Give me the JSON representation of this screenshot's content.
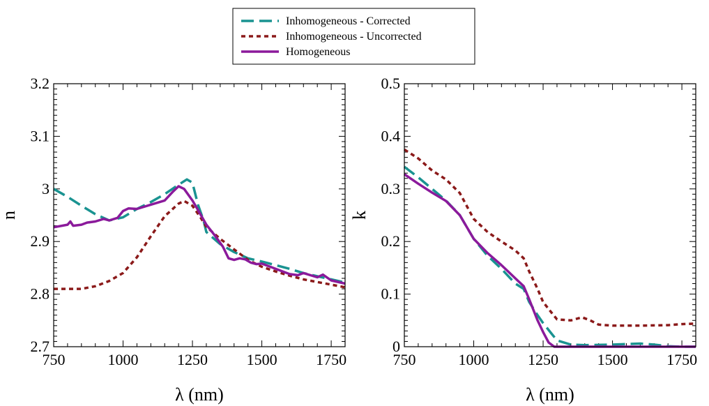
{
  "chart_data": [
    {
      "type": "line",
      "title": "",
      "xlabel": "λ (nm)",
      "ylabel": "n",
      "xlim": [
        750,
        1800
      ],
      "ylim": [
        2.7,
        3.2
      ],
      "xticks": [
        750,
        1000,
        1250,
        1500,
        1750
      ],
      "xtick_labels": [
        "750",
        "1000",
        "1250",
        "1500",
        "1750"
      ],
      "yticks": [
        2.7,
        2.8,
        2.9,
        3.0,
        3.1,
        3.2
      ],
      "ytick_labels": [
        "2.7",
        "2.8",
        "2.9",
        "3",
        "3.1",
        "3.2"
      ],
      "grid": false,
      "series": [
        {
          "name": "Inhomogeneous - Corrected",
          "color": "#1a9391",
          "dash": "dashed",
          "points": [
            [
              750,
              3.0
            ],
            [
              800,
              2.985
            ],
            [
              850,
              2.968
            ],
            [
              900,
              2.952
            ],
            [
              950,
              2.94
            ],
            [
              1000,
              2.946
            ],
            [
              1050,
              2.962
            ],
            [
              1100,
              2.975
            ],
            [
              1150,
              2.99
            ],
            [
              1200,
              3.008
            ],
            [
              1230,
              3.018
            ],
            [
              1250,
              3.012
            ],
            [
              1270,
              2.97
            ],
            [
              1290,
              2.94
            ],
            [
              1300,
              2.918
            ],
            [
              1350,
              2.895
            ],
            [
              1400,
              2.88
            ],
            [
              1450,
              2.868
            ],
            [
              1500,
              2.862
            ],
            [
              1550,
              2.855
            ],
            [
              1600,
              2.848
            ],
            [
              1650,
              2.84
            ],
            [
              1700,
              2.834
            ],
            [
              1750,
              2.828
            ],
            [
              1800,
              2.822
            ]
          ]
        },
        {
          "name": "Inhomogeneous - Uncorrected",
          "color": "#8b1a1a",
          "dash": "dotted",
          "points": [
            [
              750,
              2.81
            ],
            [
              800,
              2.81
            ],
            [
              850,
              2.81
            ],
            [
              900,
              2.815
            ],
            [
              950,
              2.825
            ],
            [
              1000,
              2.84
            ],
            [
              1050,
              2.87
            ],
            [
              1100,
              2.91
            ],
            [
              1150,
              2.948
            ],
            [
              1200,
              2.972
            ],
            [
              1220,
              2.977
            ],
            [
              1250,
              2.968
            ],
            [
              1280,
              2.945
            ],
            [
              1300,
              2.928
            ],
            [
              1350,
              2.905
            ],
            [
              1400,
              2.885
            ],
            [
              1450,
              2.865
            ],
            [
              1500,
              2.852
            ],
            [
              1550,
              2.843
            ],
            [
              1600,
              2.835
            ],
            [
              1650,
              2.828
            ],
            [
              1700,
              2.823
            ],
            [
              1750,
              2.818
            ],
            [
              1800,
              2.813
            ]
          ]
        },
        {
          "name": "Homogeneous",
          "color": "#8b1a9b",
          "dash": "solid",
          "points": [
            [
              750,
              2.927
            ],
            [
              800,
              2.932
            ],
            [
              810,
              2.938
            ],
            [
              820,
              2.93
            ],
            [
              850,
              2.932
            ],
            [
              870,
              2.936
            ],
            [
              900,
              2.938
            ],
            [
              930,
              2.943
            ],
            [
              950,
              2.94
            ],
            [
              980,
              2.945
            ],
            [
              1000,
              2.958
            ],
            [
              1020,
              2.963
            ],
            [
              1050,
              2.962
            ],
            [
              1100,
              2.97
            ],
            [
              1150,
              2.978
            ],
            [
              1180,
              2.995
            ],
            [
              1200,
              3.005
            ],
            [
              1220,
              3.0
            ],
            [
              1250,
              2.978
            ],
            [
              1270,
              2.96
            ],
            [
              1300,
              2.932
            ],
            [
              1330,
              2.912
            ],
            [
              1360,
              2.89
            ],
            [
              1380,
              2.868
            ],
            [
              1400,
              2.865
            ],
            [
              1420,
              2.868
            ],
            [
              1440,
              2.866
            ],
            [
              1460,
              2.86
            ],
            [
              1480,
              2.857
            ],
            [
              1500,
              2.858
            ],
            [
              1550,
              2.848
            ],
            [
              1600,
              2.838
            ],
            [
              1630,
              2.836
            ],
            [
              1650,
              2.84
            ],
            [
              1700,
              2.832
            ],
            [
              1720,
              2.837
            ],
            [
              1750,
              2.826
            ],
            [
              1800,
              2.82
            ]
          ]
        }
      ]
    },
    {
      "type": "line",
      "title": "",
      "xlabel": "λ (nm)",
      "ylabel": "k",
      "xlim": [
        750,
        1800
      ],
      "ylim": [
        0,
        0.5
      ],
      "xticks": [
        750,
        1000,
        1250,
        1500,
        1750
      ],
      "xtick_labels": [
        "750",
        "1000",
        "1250",
        "1500",
        "1750"
      ],
      "yticks": [
        0,
        0.1,
        0.2,
        0.3,
        0.4,
        0.5
      ],
      "ytick_labels": [
        "0",
        "0.1",
        "0.2",
        "0.3",
        "0.4",
        "0.5"
      ],
      "grid": false,
      "series": [
        {
          "name": "Inhomogeneous - Corrected",
          "color": "#1a9391",
          "dash": "dashed",
          "points": [
            [
              750,
              0.342
            ],
            [
              800,
              0.322
            ],
            [
              850,
              0.3
            ],
            [
              900,
              0.278
            ],
            [
              950,
              0.25
            ],
            [
              1000,
              0.205
            ],
            [
              1050,
              0.173
            ],
            [
              1100,
              0.148
            ],
            [
              1150,
              0.12
            ],
            [
              1180,
              0.11
            ],
            [
              1200,
              0.085
            ],
            [
              1230,
              0.06
            ],
            [
              1250,
              0.045
            ],
            [
              1280,
              0.025
            ],
            [
              1300,
              0.012
            ],
            [
              1350,
              0.004
            ],
            [
              1400,
              0.003
            ],
            [
              1500,
              0.004
            ],
            [
              1550,
              0.005
            ],
            [
              1600,
              0.006
            ],
            [
              1650,
              0.004
            ],
            [
              1700,
              0.001
            ],
            [
              1750,
              0.0
            ],
            [
              1800,
              0.0
            ]
          ]
        },
        {
          "name": "Inhomogeneous - Uncorrected",
          "color": "#8b1a1a",
          "dash": "dotted",
          "points": [
            [
              750,
              0.375
            ],
            [
              800,
              0.358
            ],
            [
              850,
              0.335
            ],
            [
              900,
              0.318
            ],
            [
              950,
              0.292
            ],
            [
              1000,
              0.243
            ],
            [
              1050,
              0.218
            ],
            [
              1100,
              0.2
            ],
            [
              1150,
              0.183
            ],
            [
              1180,
              0.168
            ],
            [
              1200,
              0.143
            ],
            [
              1230,
              0.11
            ],
            [
              1250,
              0.085
            ],
            [
              1280,
              0.065
            ],
            [
              1300,
              0.052
            ],
            [
              1350,
              0.05
            ],
            [
              1390,
              0.056
            ],
            [
              1420,
              0.05
            ],
            [
              1450,
              0.042
            ],
            [
              1500,
              0.04
            ],
            [
              1600,
              0.04
            ],
            [
              1700,
              0.041
            ],
            [
              1750,
              0.043
            ],
            [
              1800,
              0.044
            ]
          ]
        },
        {
          "name": "Homogeneous",
          "color": "#8b1a9b",
          "dash": "solid",
          "points": [
            [
              750,
              0.328
            ],
            [
              800,
              0.31
            ],
            [
              850,
              0.293
            ],
            [
              900,
              0.277
            ],
            [
              950,
              0.25
            ],
            [
              1000,
              0.205
            ],
            [
              1050,
              0.178
            ],
            [
              1100,
              0.155
            ],
            [
              1150,
              0.13
            ],
            [
              1180,
              0.115
            ],
            [
              1200,
              0.09
            ],
            [
              1230,
              0.05
            ],
            [
              1250,
              0.028
            ],
            [
              1270,
              0.008
            ],
            [
              1290,
              0.0
            ],
            [
              1350,
              0.0
            ],
            [
              1500,
              0.0
            ],
            [
              1600,
              0.0
            ],
            [
              1700,
              0.0
            ],
            [
              1800,
              0.0
            ]
          ]
        }
      ]
    }
  ],
  "legend": {
    "placement": "top-center",
    "entries": [
      {
        "label": "Inhomogeneous - Corrected",
        "color": "#1a9391",
        "dash": "dashed"
      },
      {
        "label": "Inhomogeneous - Uncorrected",
        "color": "#8b1a1a",
        "dash": "dotted"
      },
      {
        "label": "Homogeneous",
        "color": "#8b1a9b",
        "dash": "solid"
      }
    ]
  }
}
